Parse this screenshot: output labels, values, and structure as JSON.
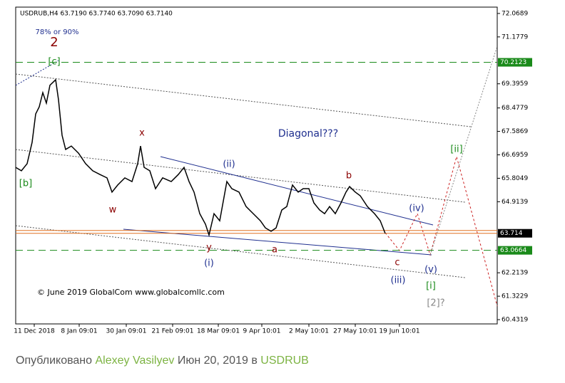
{
  "chart_data": {
    "type": "line",
    "header": "USDRUB,H4 63.7190 63.7740 63.7090 63.7140",
    "x": [
      0,
      8,
      16,
      23,
      28,
      33,
      38,
      43,
      48,
      53,
      56,
      60,
      65,
      70,
      78,
      88,
      98,
      108,
      118,
      128,
      135,
      143,
      153,
      163,
      171,
      175,
      180,
      188,
      196,
      206,
      218,
      228,
      236,
      243,
      250,
      258,
      266,
      271,
      278,
      286,
      296,
      303,
      313,
      323,
      333,
      343,
      350,
      358,
      365,
      373,
      380,
      388,
      396,
      403,
      411,
      418,
      426,
      433,
      440,
      448,
      456,
      463,
      468,
      476,
      483,
      493,
      503,
      511,
      518
    ],
    "values": [
      66.22,
      66.09,
      66.36,
      67.17,
      68.25,
      68.52,
      69.06,
      68.66,
      69.34,
      69.47,
      69.55,
      68.79,
      67.44,
      66.9,
      67.03,
      66.76,
      66.36,
      66.09,
      65.95,
      65.82,
      65.28,
      65.55,
      65.82,
      65.68,
      66.36,
      67.03,
      66.22,
      66.09,
      65.41,
      65.82,
      65.68,
      65.95,
      66.22,
      65.68,
      65.28,
      64.46,
      64.06,
      63.65,
      64.46,
      64.19,
      65.68,
      65.41,
      65.28,
      64.73,
      64.46,
      64.19,
      63.92,
      63.79,
      63.92,
      64.6,
      64.73,
      65.55,
      65.28,
      65.41,
      65.41,
      64.87,
      64.6,
      64.46,
      64.73,
      64.46,
      64.87,
      65.28,
      65.49,
      65.28,
      65.14,
      64.73,
      64.46,
      64.19,
      63.71
    ],
    "color": "#000000",
    "xlim": [
      0,
      675
    ],
    "xticks": [
      {
        "value": 26,
        "label": "11 Dec 2018"
      },
      {
        "value": 89,
        "label": "8 Jan 09:01"
      },
      {
        "value": 155,
        "label": "30 Jan 09:01"
      },
      {
        "value": 220,
        "label": "21 Feb 09:01"
      },
      {
        "value": 284,
        "label": "18 Mar 09:01"
      },
      {
        "value": 345,
        "label": "9 Apr 10:01"
      },
      {
        "value": 411,
        "label": "2 May 10:01"
      },
      {
        "value": 476,
        "label": "27 May 10:01"
      },
      {
        "value": 538,
        "label": "19 Jun 10:01"
      }
    ],
    "ylim": [
      60.27,
      72.31
    ],
    "yticks": [
      72.0689,
      71.1779,
      69.3959,
      68.4779,
      67.5869,
      66.6959,
      65.8049,
      64.9139,
      62.2139,
      61.3229,
      60.4319
    ],
    "levels": [
      {
        "value": 70.2123,
        "color": "#1a8a1a"
      },
      {
        "value": 63.0664,
        "color": "#1a8a1a"
      }
    ],
    "current_price": 63.714,
    "annotations": [
      {
        "text": "78% or 90%",
        "color": "#1f2f8f"
      },
      {
        "text": "2",
        "color": "#8b0000"
      },
      {
        "text": "[c]",
        "color": "#1a8a1a"
      },
      {
        "text": "[b]",
        "color": "#1a8a1a"
      },
      {
        "text": "x",
        "color": "#8b0000"
      },
      {
        "text": "w",
        "color": "#8b0000"
      },
      {
        "text": "y",
        "color": "#8b0000"
      },
      {
        "text": "a",
        "color": "#8b0000"
      },
      {
        "text": "b",
        "color": "#8b0000"
      },
      {
        "text": "c",
        "color": "#8b0000"
      },
      {
        "text": "(i)",
        "color": "#1f2f8f"
      },
      {
        "text": "(ii)",
        "color": "#1f2f8f"
      },
      {
        "text": "(iii)",
        "color": "#1f2f8f"
      },
      {
        "text": "(iv)",
        "color": "#1f2f8f"
      },
      {
        "text": "(v)",
        "color": "#1f2f8f"
      },
      {
        "text": "[i]",
        "color": "#1a8a1a"
      },
      {
        "text": "[ii]",
        "color": "#1a8a1a"
      },
      {
        "text": "[2]?",
        "color": "#888888"
      },
      {
        "text": "Diagonal???",
        "color": "#1f2f8f"
      },
      {
        "text": "© June 2019 GlobalCom www.globalcomllc.com",
        "color": "#000000"
      }
    ]
  },
  "footer": {
    "prefix": "Опубликовано",
    "author": "Alexey Vasilyev",
    "date": "Июн 20, 2019 в",
    "symbol": "USDRUB"
  }
}
